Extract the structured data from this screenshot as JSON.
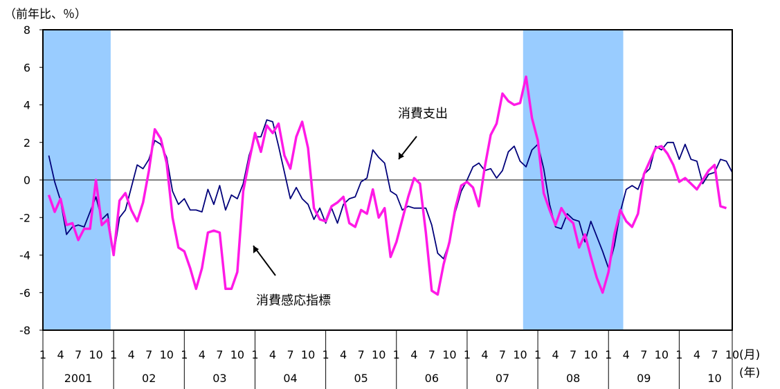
{
  "chart_data": {
    "type": "line",
    "y_unit_label": "（前年比、％）",
    "x_unit_month": "(月)",
    "x_unit_year": "(年)",
    "ylim": [
      -8,
      8
    ],
    "y_ticks": [
      "8",
      "6",
      "4",
      "2",
      "0",
      "-2",
      "-4",
      "-6",
      "-8"
    ],
    "month_ticks": [
      "1",
      "4",
      "7",
      "10"
    ],
    "years": [
      "2001",
      "02",
      "03",
      "04",
      "05",
      "06",
      "07",
      "08",
      "09",
      "10"
    ],
    "grid": false,
    "shaded_periods": [
      {
        "start": "2001-01",
        "end": "2001-12"
      },
      {
        "start": "2007-11",
        "end": "2009-03"
      }
    ],
    "series": [
      {
        "name": "消費支出",
        "color": "#00007a",
        "values": [
          1.3,
          -0.1,
          -1.1,
          -2.9,
          -2.5,
          -2.4,
          -2.5,
          -1.7,
          -0.9,
          -2.1,
          -1.8,
          -4.0,
          -2.0,
          -1.6,
          -0.4,
          0.8,
          0.6,
          1.1,
          2.1,
          1.9,
          1.2,
          -0.6,
          -1.3,
          -1.0,
          -1.6,
          -1.6,
          -1.7,
          -0.5,
          -1.3,
          -0.3,
          -1.6,
          -0.8,
          -1.0,
          -0.2,
          1.3,
          2.3,
          2.3,
          3.2,
          3.1,
          1.8,
          0.4,
          -1.0,
          -0.4,
          -1.0,
          -1.3,
          -2.1,
          -1.5,
          -2.3,
          -1.5,
          -2.3,
          -1.3,
          -1.0,
          -0.9,
          -0.1,
          0.1,
          1.6,
          1.2,
          0.9,
          -0.6,
          -0.8,
          -1.6,
          -1.4,
          -1.5,
          -1.5,
          -1.5,
          -2.4,
          -3.9,
          -4.2,
          -3.3,
          -1.7,
          -0.6,
          0.0,
          0.7,
          0.9,
          0.5,
          0.6,
          0.1,
          0.5,
          1.5,
          1.8,
          1.0,
          0.7,
          1.6,
          1.9,
          0.6,
          -1.3,
          -2.5,
          -2.6,
          -1.8,
          -2.1,
          -2.2,
          -3.3,
          -2.2,
          -3.0,
          -3.8,
          -4.7,
          -3.5,
          -1.7,
          -0.5,
          -0.3,
          -0.5,
          0.3,
          0.6,
          1.8,
          1.6,
          2.0,
          2.0,
          1.1,
          1.9,
          1.1,
          1.0,
          -0.2,
          0.3,
          0.4,
          1.1,
          1.0,
          0.4
        ]
      },
      {
        "name": "消費感応指標",
        "color": "#ff1ae6",
        "values": [
          -0.8,
          -1.7,
          -1.0,
          -2.4,
          -2.3,
          -3.2,
          -2.6,
          -2.6,
          0.0,
          -2.4,
          -2.1,
          -4.0,
          -1.1,
          -0.7,
          -1.6,
          -2.2,
          -1.2,
          0.5,
          2.7,
          2.2,
          0.9,
          -2.0,
          -3.6,
          -3.8,
          -4.7,
          -5.8,
          -4.7,
          -2.8,
          -2.7,
          -2.8,
          -5.8,
          -5.8,
          -4.9,
          -0.6,
          1.0,
          2.5,
          1.5,
          2.9,
          2.5,
          3.0,
          1.3,
          0.6,
          2.3,
          3.1,
          1.7,
          -1.5,
          -2.1,
          -2.2,
          -1.4,
          -1.2,
          -0.9,
          -2.3,
          -2.5,
          -1.6,
          -1.8,
          -0.5,
          -2.0,
          -1.5,
          -4.1,
          -3.3,
          -2.1,
          -0.9,
          0.1,
          -0.2,
          -2.8,
          -5.9,
          -6.1,
          -4.5,
          -3.3,
          -1.5,
          -0.3,
          -0.1,
          -0.4,
          -1.4,
          0.7,
          2.4,
          3.0,
          4.6,
          4.2,
          4.0,
          4.1,
          5.5,
          3.3,
          2.1,
          -0.7,
          -1.6,
          -2.4,
          -1.5,
          -2.0,
          -2.3,
          -3.6,
          -2.9,
          -4.1,
          -5.2,
          -6.0,
          -4.9,
          -2.9,
          -1.6,
          -2.2,
          -2.5,
          -1.8,
          0.3,
          1.0,
          1.7,
          1.8,
          1.4,
          0.8,
          -0.1,
          0.1,
          -0.2,
          -0.5,
          0.0,
          0.5,
          0.8,
          -1.4,
          -1.5
        ]
      }
    ],
    "annotations": [
      {
        "text": "消費支出"
      },
      {
        "text": "消費感応指標"
      }
    ]
  }
}
